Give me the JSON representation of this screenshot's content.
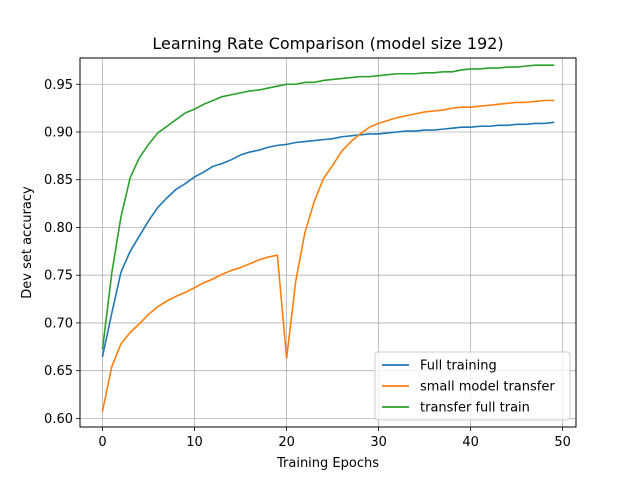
{
  "chart_data": {
    "type": "line",
    "title": "Learning Rate Comparison (model size 192)",
    "xlabel": "Training Epochs",
    "ylabel": "Dev set accuracy",
    "xlim": [
      -2.45,
      51.45
    ],
    "ylim": [
      0.591,
      0.9775
    ],
    "xticks": [
      0,
      10,
      20,
      30,
      40,
      50
    ],
    "xtick_labels": [
      "0",
      "10",
      "20",
      "30",
      "40",
      "50"
    ],
    "yticks": [
      0.6,
      0.65,
      0.7,
      0.75,
      0.8,
      0.85,
      0.9,
      0.95
    ],
    "ytick_labels": [
      "0.60",
      "0.65",
      "0.70",
      "0.75",
      "0.80",
      "0.85",
      "0.90",
      "0.95"
    ],
    "grid": true,
    "legend_position": "lower-right",
    "x": [
      0,
      1,
      2,
      3,
      4,
      5,
      6,
      7,
      8,
      9,
      10,
      11,
      12,
      13,
      14,
      15,
      16,
      17,
      18,
      19,
      20,
      21,
      22,
      23,
      24,
      25,
      26,
      27,
      28,
      29,
      30,
      31,
      32,
      33,
      34,
      35,
      36,
      37,
      38,
      39,
      40,
      41,
      42,
      43,
      44,
      45,
      46,
      47,
      48,
      49
    ],
    "series": [
      {
        "name": "Full training",
        "color": "#1f77b4",
        "values": [
          0.665,
          0.71,
          0.753,
          0.775,
          0.791,
          0.807,
          0.821,
          0.831,
          0.84,
          0.846,
          0.853,
          0.858,
          0.864,
          0.867,
          0.871,
          0.876,
          0.879,
          0.881,
          0.884,
          0.886,
          0.887,
          0.889,
          0.89,
          0.891,
          0.892,
          0.893,
          0.895,
          0.896,
          0.897,
          0.898,
          0.898,
          0.899,
          0.9,
          0.901,
          0.901,
          0.902,
          0.902,
          0.903,
          0.904,
          0.905,
          0.905,
          0.906,
          0.906,
          0.907,
          0.907,
          0.908,
          0.908,
          0.909,
          0.909,
          0.91
        ]
      },
      {
        "name": "small model transfer",
        "color": "#ff7f0e",
        "values": [
          0.608,
          0.654,
          0.678,
          0.69,
          0.699,
          0.709,
          0.717,
          0.723,
          0.728,
          0.732,
          0.737,
          0.742,
          0.746,
          0.751,
          0.755,
          0.758,
          0.762,
          0.766,
          0.769,
          0.771,
          0.663,
          0.744,
          0.795,
          0.827,
          0.851,
          0.865,
          0.88,
          0.89,
          0.898,
          0.905,
          0.909,
          0.912,
          0.915,
          0.917,
          0.919,
          0.921,
          0.922,
          0.923,
          0.925,
          0.926,
          0.926,
          0.927,
          0.928,
          0.929,
          0.93,
          0.931,
          0.931,
          0.932,
          0.933,
          0.933
        ]
      },
      {
        "name": "transfer full train",
        "color": "#2ca02c",
        "values": [
          0.673,
          0.752,
          0.811,
          0.852,
          0.873,
          0.887,
          0.899,
          0.906,
          0.913,
          0.92,
          0.924,
          0.929,
          0.933,
          0.937,
          0.939,
          0.941,
          0.943,
          0.944,
          0.946,
          0.948,
          0.95,
          0.95,
          0.952,
          0.952,
          0.954,
          0.955,
          0.956,
          0.957,
          0.958,
          0.958,
          0.959,
          0.96,
          0.961,
          0.961,
          0.961,
          0.962,
          0.962,
          0.963,
          0.963,
          0.965,
          0.966,
          0.966,
          0.967,
          0.967,
          0.968,
          0.968,
          0.969,
          0.97,
          0.97,
          0.97
        ]
      }
    ]
  }
}
